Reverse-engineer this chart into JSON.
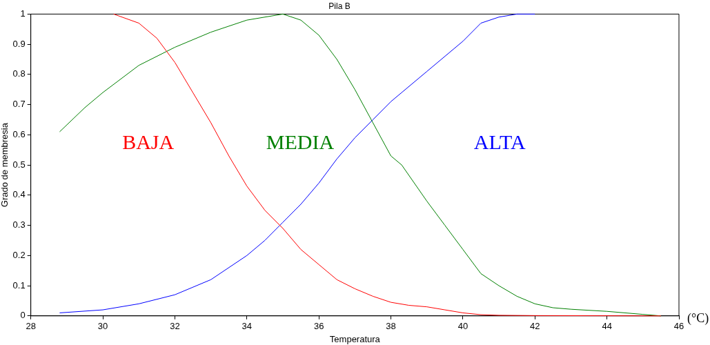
{
  "chart_data": {
    "type": "line",
    "title": "Pila B",
    "xlabel": "Temperatura",
    "ylabel": "Grado de membresia",
    "annotations": [
      "(°C)"
    ],
    "xlim": [
      28,
      46
    ],
    "xticks": [
      28,
      30,
      32,
      34,
      36,
      38,
      40,
      42,
      44,
      46
    ],
    "ylim": [
      0,
      1
    ],
    "yticks": [
      0,
      0.1,
      0.2,
      0.3,
      0.4,
      0.5,
      0.6,
      0.7,
      0.8,
      0.9,
      1
    ],
    "grid": false,
    "legend": false,
    "marker": "none",
    "line_style": "solid",
    "series": [
      {
        "name": "BAJA",
        "color": "#ff0000",
        "x": [
          30.3,
          31,
          31.5,
          32,
          32.5,
          33,
          33.5,
          34,
          34.5,
          35,
          35.5,
          36,
          36.5,
          37,
          37.5,
          38,
          38.5,
          39,
          39.5,
          40,
          40.5,
          41,
          42,
          45.5
        ],
        "values": [
          1,
          0.97,
          0.92,
          0.84,
          0.74,
          0.64,
          0.53,
          0.43,
          0.35,
          0.29,
          0.22,
          0.17,
          0.12,
          0.09,
          0.065,
          0.045,
          0.035,
          0.03,
          0.02,
          0.01,
          0.004,
          0.002,
          0.001,
          0
        ]
      },
      {
        "name": "MEDIA",
        "color": "#008000",
        "x": [
          28.8,
          29.5,
          30,
          31,
          32,
          33,
          34,
          35,
          35.5,
          36,
          36.5,
          37,
          37.5,
          38,
          38.3,
          39,
          39.5,
          40,
          40.5,
          41,
          41.5,
          42,
          42.5,
          43,
          44,
          45,
          45.5
        ],
        "values": [
          0.61,
          0.69,
          0.74,
          0.83,
          0.89,
          0.94,
          0.98,
          1,
          0.98,
          0.93,
          0.85,
          0.75,
          0.64,
          0.53,
          0.5,
          0.38,
          0.3,
          0.22,
          0.14,
          0.1,
          0.065,
          0.04,
          0.027,
          0.022,
          0.015,
          0.005,
          0
        ]
      },
      {
        "name": "ALTA",
        "color": "#0000ff",
        "x": [
          28.8,
          30,
          31,
          32,
          33,
          34,
          34.5,
          35,
          35.5,
          36,
          36.5,
          37,
          37.5,
          38,
          38.3,
          39,
          40,
          40.5,
          41,
          41.5,
          42
        ],
        "values": [
          0.01,
          0.02,
          0.04,
          0.07,
          0.12,
          0.2,
          0.25,
          0.31,
          0.37,
          0.44,
          0.52,
          0.59,
          0.65,
          0.71,
          0.74,
          0.81,
          0.91,
          0.97,
          0.99,
          1,
          1
        ]
      }
    ]
  }
}
